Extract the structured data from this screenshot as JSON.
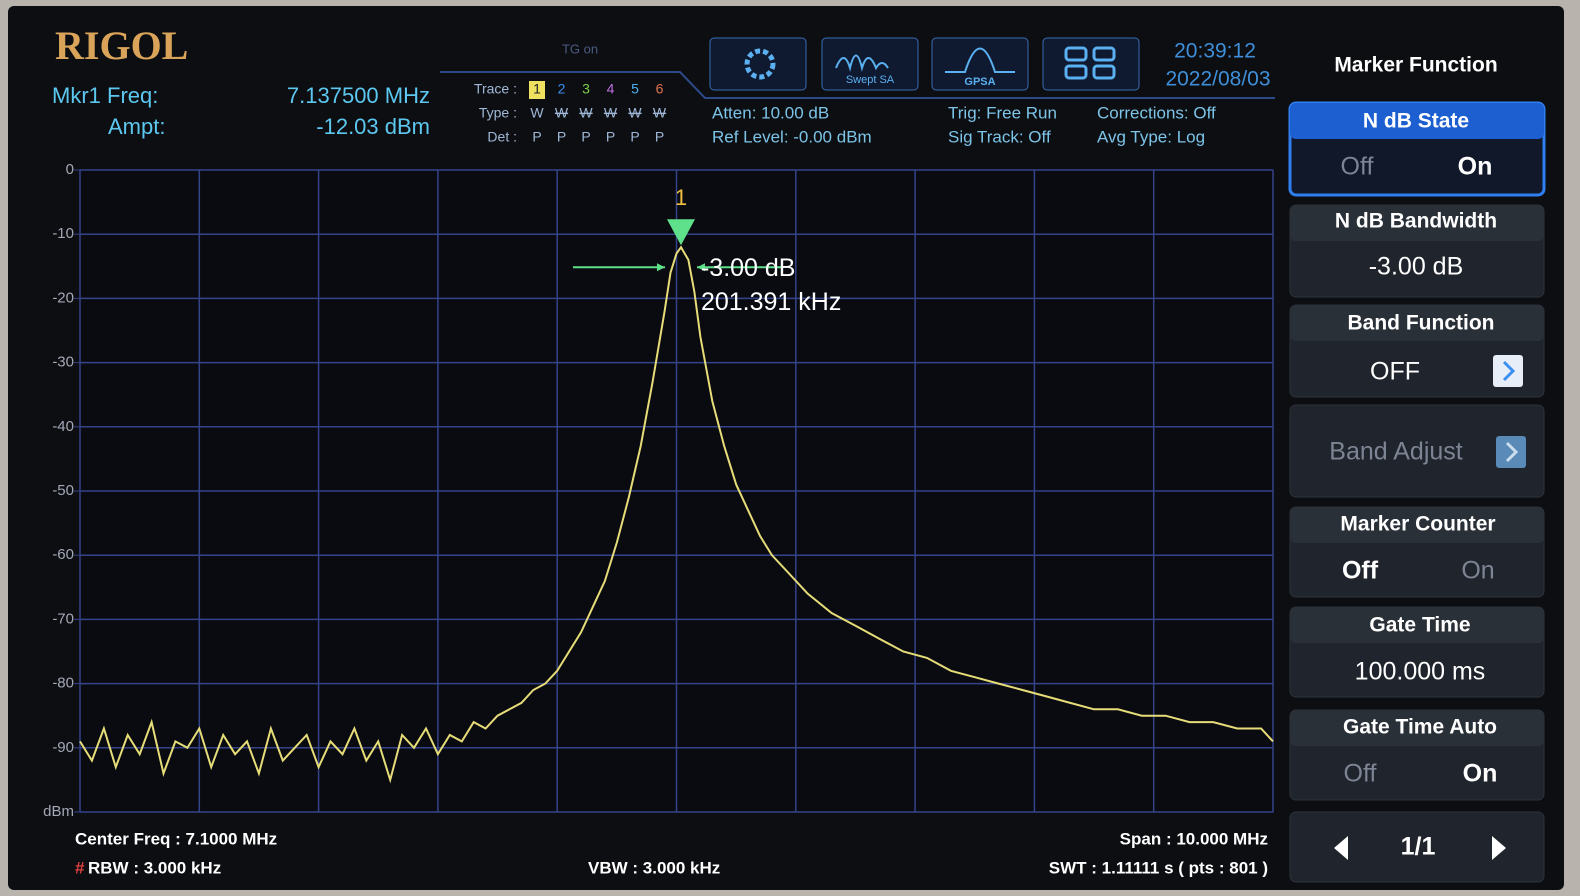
{
  "header": {
    "brand": "RIGOL",
    "tg": "TG on",
    "mkr_freq_label": "Mkr1 Freq:",
    "mkr_freq": "7.137500 MHz",
    "ampt_label": "Ampt:",
    "ampt": "-12.03 dBm",
    "trace_label": "Trace :",
    "trace_nums": [
      "1",
      "2",
      "3",
      "4",
      "5",
      "6"
    ],
    "type_label": "Type :",
    "types": [
      "W",
      "W",
      "W",
      "W",
      "W",
      "W"
    ],
    "det_label": "Det :",
    "dets": [
      "P",
      "P",
      "P",
      "P",
      "P",
      "P"
    ],
    "swept_sa": "Swept SA",
    "gpsa": "GPSA",
    "time": "20:39:12",
    "date": "2022/08/03",
    "atten": "Atten: 10.00 dB",
    "ref_level": "Ref Level: -0.00 dBm",
    "trig": "Trig: Free Run",
    "sig_track": "Sig Track: Off",
    "corrections": "Corrections: Off",
    "avg_type": "Avg Type: Log"
  },
  "chart_data": {
    "type": "line",
    "x": [
      2.1,
      2.2,
      2.3,
      2.4,
      2.5,
      2.6,
      2.7,
      2.8,
      2.9,
      3.0,
      3.1,
      3.2,
      3.3,
      3.4,
      3.5,
      3.6,
      3.7,
      3.8,
      3.9,
      4.0,
      4.1,
      4.2,
      4.3,
      4.4,
      4.5,
      4.6,
      4.7,
      4.8,
      4.9,
      5.0,
      5.1,
      5.2,
      5.3,
      5.4,
      5.5,
      5.6,
      5.7,
      5.8,
      5.9,
      6.0,
      6.1,
      6.2,
      6.3,
      6.4,
      6.5,
      6.6,
      6.7,
      6.8,
      6.9,
      7.0,
      7.05,
      7.1,
      7.1375,
      7.2,
      7.25,
      7.3,
      7.4,
      7.5,
      7.6,
      7.7,
      7.8,
      7.9,
      8.0,
      8.2,
      8.4,
      8.6,
      8.8,
      9.0,
      9.2,
      9.4,
      9.6,
      9.8,
      10.0,
      10.2,
      10.4,
      10.6,
      10.8,
      11.0,
      11.2,
      11.4,
      11.6,
      11.8,
      12.0,
      12.1
    ],
    "series": [
      {
        "color": "#e6dc78",
        "values": [
          -89,
          -92,
          -87,
          -93,
          -88,
          -91,
          -86,
          -94,
          -89,
          -90,
          -87,
          -93,
          -88,
          -91,
          -89,
          -94,
          -87,
          -92,
          -90,
          -88,
          -93,
          -89,
          -91,
          -87,
          -92,
          -89,
          -95,
          -88,
          -90,
          -87,
          -91,
          -88,
          -89,
          -86,
          -87,
          -85,
          -84,
          -83,
          -81,
          -80,
          -78,
          -75,
          -72,
          -68,
          -64,
          -58,
          -51,
          -43,
          -33,
          -22,
          -16,
          -13,
          -12.03,
          -14,
          -19,
          -26,
          -36,
          -43,
          -49,
          -53,
          -57,
          -60,
          -62,
          -66,
          -69,
          -71,
          -73,
          -75,
          -76,
          -78,
          -79,
          -80,
          -81,
          -82,
          -83,
          -84,
          -84,
          -85,
          -85,
          -86,
          -86,
          -87,
          -87,
          -89
        ]
      }
    ],
    "xlim": [
      2.1,
      12.1
    ],
    "xticks": [
      2.1,
      3.1,
      4.1,
      5.1,
      6.1,
      7.1,
      8.1,
      9.1,
      10.1,
      11.1,
      12.1
    ],
    "ylim": [
      -100,
      0
    ],
    "yticks": [
      0,
      -10,
      -20,
      -30,
      -40,
      -50,
      -60,
      -70,
      -80,
      -90,
      {
        "value": -100,
        "label": "dBm"
      }
    ],
    "grid": true,
    "grid_color": "#34438a",
    "marker": {
      "label": "1",
      "x": 7.1375,
      "value": -12.03,
      "color": "#5fe08a"
    },
    "annotations": [
      "-3.00 dB",
      "201.391 kHz"
    ]
  },
  "footer": {
    "center_freq": "Center Freq : 7.1000 MHz",
    "rbw_flag": "#",
    "rbw": "RBW : 3.000 kHz",
    "vbw": "VBW : 3.000 kHz",
    "span": "Span : 10.000 MHz",
    "swt": "SWT : 1.11111 s ( pts : 801 )"
  },
  "menu": {
    "title": "Marker Function",
    "ndb_state": "N dB State",
    "ndb_state_off": "Off",
    "ndb_state_on": "On",
    "ndb_bw": "N dB Bandwidth",
    "ndb_bw_value": "-3.00 dB",
    "band_function": "Band Function",
    "band_function_value": "OFF",
    "band_adjust": "Band Adjust",
    "marker_counter": "Marker Counter",
    "marker_counter_off": "Off",
    "marker_counter_on": "On",
    "gate_time": "Gate Time",
    "gate_time_value": "100.000 ms",
    "gate_time_auto": "Gate Time Auto",
    "gate_time_auto_off": "Off",
    "gate_time_auto_on": "On",
    "page": "1/1"
  }
}
